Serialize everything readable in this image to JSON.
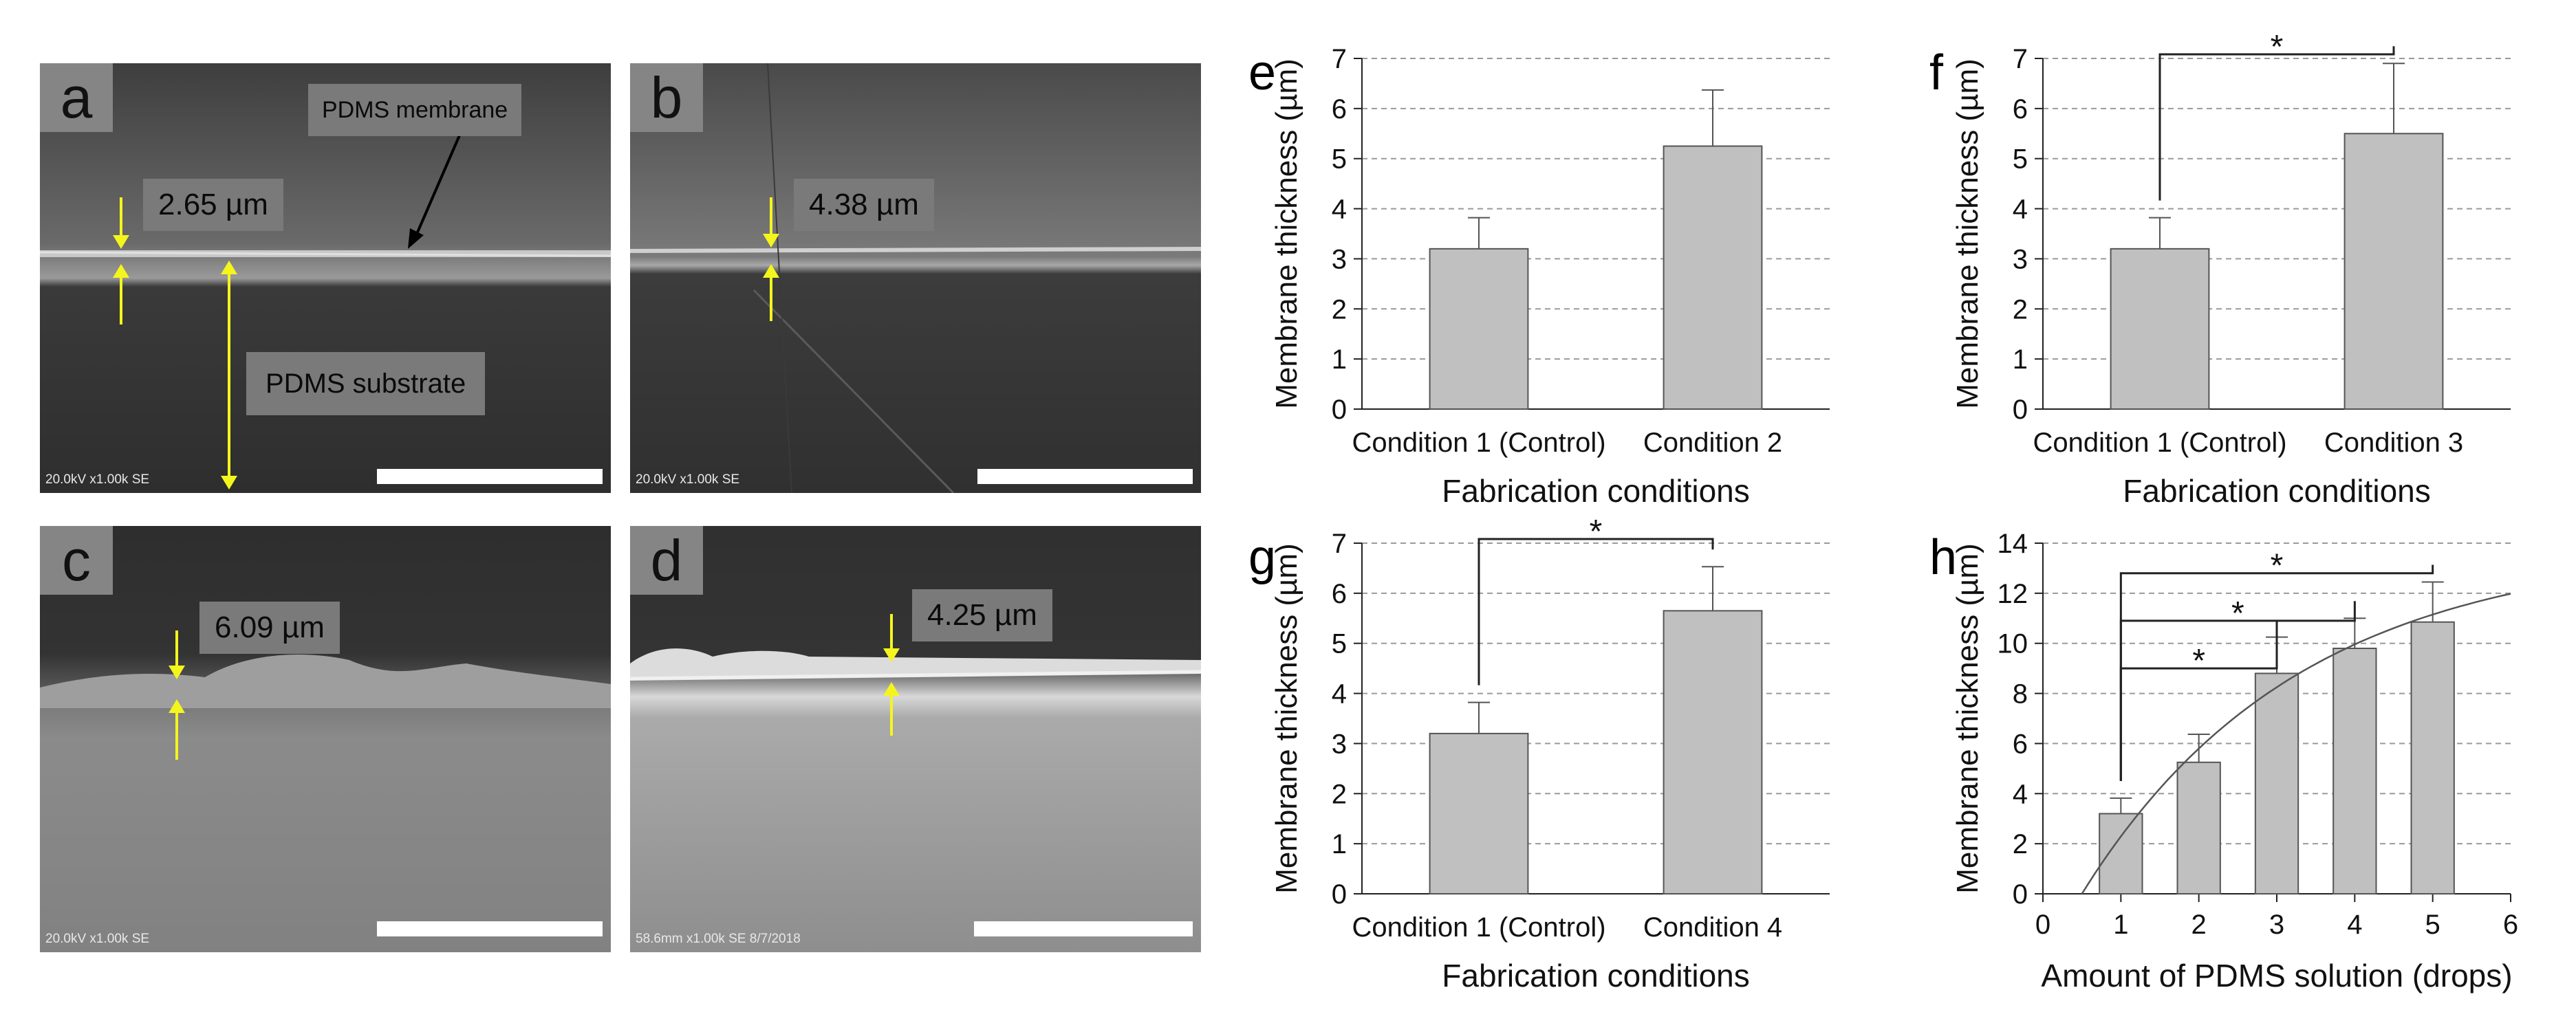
{
  "sem_panels": [
    {
      "letter": "a",
      "measurement": "2.65 µm",
      "footer": "20.0kV x1.00k SE",
      "tag1": "PDMS membrane",
      "tag2": "PDMS substrate"
    },
    {
      "letter": "b",
      "measurement": "4.38 µm",
      "footer": "20.0kV x1.00k SE"
    },
    {
      "letter": "c",
      "measurement": "6.09 µm",
      "footer": "20.0kV x1.00k SE"
    },
    {
      "letter": "d",
      "measurement": "4.25 µm",
      "footer": "58.6mm x1.00k SE 8/7/2018"
    }
  ],
  "colors": {
    "bar_fill": "#c0c0c0",
    "bar_stroke": "#555555",
    "arrow": "#f5f51e",
    "sem_dark": "#3a3a3a"
  },
  "chart_data": [
    {
      "panel": "e",
      "type": "bar",
      "categories": [
        "Condition 1 (Control)",
        "Condition 2"
      ],
      "values": [
        3.2,
        5.25
      ],
      "errors": [
        0.62,
        1.12
      ],
      "xlabel": "Fabrication conditions",
      "ylabel": "Membrane thickness (µm)",
      "ylim": [
        0,
        7
      ],
      "yticks": [
        0,
        1,
        2,
        3,
        4,
        5,
        6,
        7
      ],
      "grid": true,
      "significance": []
    },
    {
      "panel": "f",
      "type": "bar",
      "categories": [
        "Condition 1 (Control)",
        "Condition 3"
      ],
      "values": [
        3.2,
        5.5
      ],
      "errors": [
        0.62,
        1.4
      ],
      "xlabel": "Fabrication conditions",
      "ylabel": "Membrane thickness (µm)",
      "ylim": [
        0,
        7
      ],
      "yticks": [
        0,
        1,
        2,
        3,
        4,
        5,
        6,
        7
      ],
      "grid": true,
      "significance": [
        {
          "from": 0,
          "to": 1,
          "label": "*"
        }
      ]
    },
    {
      "panel": "g",
      "type": "bar",
      "categories": [
        "Condition 1 (Control)",
        "Condition 4"
      ],
      "values": [
        3.2,
        5.65
      ],
      "errors": [
        0.62,
        0.88
      ],
      "xlabel": "Fabrication conditions",
      "ylabel": "Membrane thickness (µm)",
      "ylim": [
        0,
        7
      ],
      "yticks": [
        0,
        1,
        2,
        3,
        4,
        5,
        6,
        7
      ],
      "grid": true,
      "significance": [
        {
          "from": 0,
          "to": 1,
          "label": "*"
        }
      ]
    },
    {
      "panel": "h",
      "type": "bar",
      "x": [
        1,
        2,
        3,
        4,
        5
      ],
      "values": [
        3.2,
        5.25,
        8.8,
        9.8,
        10.85
      ],
      "errors": [
        0.62,
        1.12,
        1.45,
        1.2,
        1.6
      ],
      "xlabel": "Amount of PDMS solution (drops)",
      "ylabel": "Membrane thickness (µm)",
      "xlim": [
        0,
        6
      ],
      "xticks": [
        0,
        1,
        2,
        3,
        4,
        5,
        6
      ],
      "ylim": [
        0,
        14
      ],
      "yticks": [
        0,
        2,
        4,
        6,
        8,
        10,
        12,
        14
      ],
      "grid": true,
      "trendline": true,
      "significance": [
        {
          "from": 1,
          "to": 3,
          "label": "*"
        },
        {
          "from": 1,
          "to": 4,
          "label": "*"
        },
        {
          "from": 1,
          "to": 5,
          "label": "*"
        }
      ]
    }
  ]
}
